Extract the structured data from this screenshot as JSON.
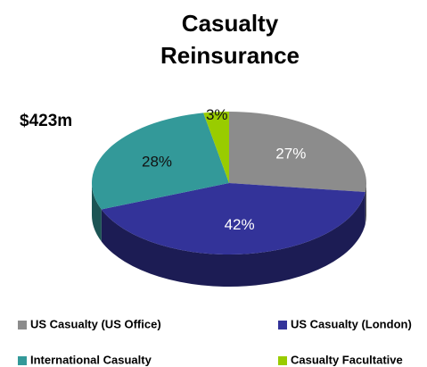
{
  "chart_data": {
    "type": "pie3d",
    "title": "Casualty Reinsurance",
    "annotation": "$423m",
    "categories": [
      "US Casualty (US Office)",
      "US Casualty (London)",
      "International Casualty",
      "Casualty Facultative"
    ],
    "values": [
      27,
      42,
      28,
      3
    ],
    "value_labels": [
      "27%",
      "42%",
      "28%",
      "3%"
    ],
    "colors": [
      "#8c8c8c",
      "#333399",
      "#339999",
      "#99cc00"
    ],
    "label_colors": [
      "#ffffff",
      "#ffffff",
      "#111111",
      "#111111"
    ],
    "legend": "bottom"
  }
}
